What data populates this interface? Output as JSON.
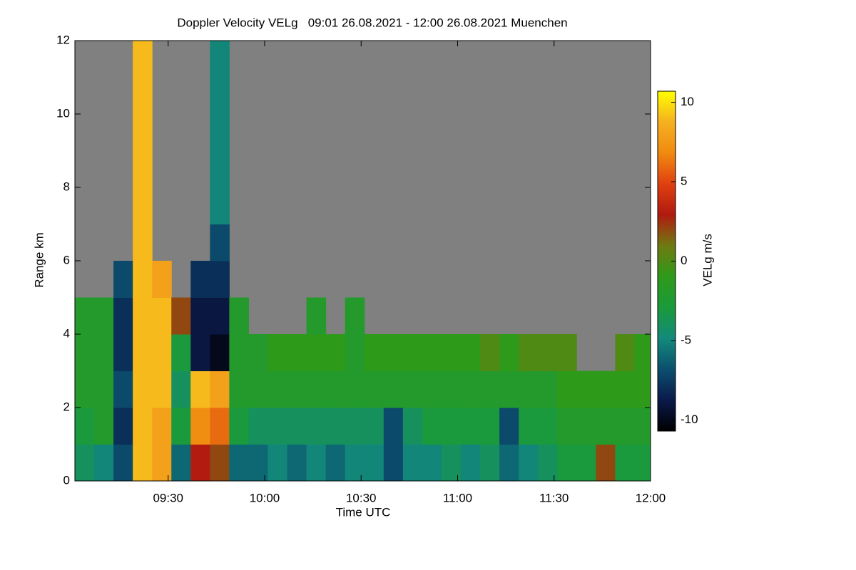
{
  "chart_data": {
    "type": "heatmap",
    "title": "Doppler Velocity VELg   09:01 26.08.2021 - 12:00 26.08.2021 Muenchen",
    "x_label": "Time UTC",
    "y_label": "Range km",
    "colorbar_label": "VELg m/s",
    "xlim": [
      541,
      720
    ],
    "xticks": [
      {
        "value": 570,
        "label": "09:30"
      },
      {
        "value": 600,
        "label": "10:00"
      },
      {
        "value": 630,
        "label": "10:30"
      },
      {
        "value": 660,
        "label": "11:00"
      },
      {
        "value": 690,
        "label": "11:30"
      },
      {
        "value": 720,
        "label": "12:00"
      }
    ],
    "ylim": [
      0,
      12
    ],
    "yticks": [
      0,
      2,
      4,
      6,
      8,
      10,
      12
    ],
    "clim": [
      -10.7,
      10.7
    ],
    "cticks": [
      -10,
      -5,
      0,
      5,
      10
    ],
    "colormap": [
      "#000000",
      "#0a1a4a",
      "#0b4f6e",
      "#138a7a",
      "#1a9a3a",
      "#2e9a1a",
      "#6f7a10",
      "#b01a10",
      "#e04010",
      "#f08a10",
      "#f5b020",
      "#ffff00"
    ],
    "missing_color": "#808080",
    "x": [
      544,
      550,
      556,
      562,
      568,
      574,
      580,
      586,
      592,
      598,
      604,
      610,
      616,
      622,
      628,
      634,
      640,
      646,
      652,
      658,
      664,
      670,
      676,
      682,
      688,
      694,
      700,
      706,
      712,
      718
    ],
    "y": [
      0.5,
      1.5,
      2.5,
      3.5,
      4.5,
      5.5,
      6.5,
      7.5,
      8.5,
      9.5,
      10.5,
      11.5
    ],
    "values": [
      [
        -4,
        -3,
        -2,
        -2,
        -2,
        null,
        null,
        null,
        null,
        null,
        null,
        null
      ],
      [
        -5,
        -2,
        -2,
        -2,
        -2,
        null,
        null,
        null,
        null,
        null,
        null,
        null
      ],
      [
        -7,
        -8,
        -7,
        -8,
        -8,
        -7,
        null,
        null,
        null,
        null,
        null,
        null
      ],
      [
        9,
        9,
        9,
        9,
        9,
        9,
        9,
        9,
        9,
        9,
        9,
        9
      ],
      [
        8,
        8,
        9,
        9,
        9,
        8,
        null,
        null,
        null,
        null,
        null,
        null
      ],
      [
        -6,
        -3,
        -4,
        -3,
        2,
        null,
        null,
        null,
        null,
        null,
        null,
        null
      ],
      [
        3,
        7,
        9,
        -9,
        -9,
        -8,
        null,
        null,
        null,
        null,
        null,
        null
      ],
      [
        2,
        6,
        8,
        -10,
        -9,
        -8,
        -7,
        -5,
        -5,
        -5,
        -5,
        -5
      ],
      [
        -6,
        -3,
        -2,
        -2,
        -2,
        null,
        null,
        null,
        null,
        null,
        null,
        null
      ],
      [
        -6,
        -4,
        -2,
        -2,
        null,
        null,
        null,
        null,
        null,
        null,
        null,
        null
      ],
      [
        -5,
        -4,
        -2,
        -1,
        null,
        null,
        null,
        null,
        null,
        null,
        null,
        null
      ],
      [
        -6,
        -4,
        -2,
        -1,
        null,
        null,
        null,
        null,
        null,
        null,
        null,
        null
      ],
      [
        -5,
        -4,
        -2,
        -1,
        -2,
        null,
        null,
        null,
        null,
        null,
        null,
        null
      ],
      [
        -6,
        -4,
        -2,
        -1,
        null,
        null,
        null,
        null,
        null,
        null,
        null,
        null
      ],
      [
        -5,
        -4,
        -2,
        -2,
        -2,
        null,
        null,
        null,
        null,
        null,
        null,
        null
      ],
      [
        -5,
        -4,
        -2,
        -1,
        null,
        null,
        null,
        null,
        null,
        null,
        null,
        null
      ],
      [
        -7,
        -7,
        -2,
        -1,
        null,
        null,
        null,
        null,
        null,
        null,
        null,
        null
      ],
      [
        -5,
        -4,
        -2,
        -1,
        null,
        null,
        null,
        null,
        null,
        null,
        null,
        null
      ],
      [
        -5,
        -3,
        -2,
        -1,
        null,
        null,
        null,
        null,
        null,
        null,
        null,
        null
      ],
      [
        -4,
        -3,
        -2,
        -1,
        null,
        null,
        null,
        null,
        null,
        null,
        null,
        null
      ],
      [
        -5,
        -3,
        -2,
        -1,
        null,
        null,
        null,
        null,
        null,
        null,
        null,
        null
      ],
      [
        -4,
        -3,
        -2,
        0,
        null,
        null,
        null,
        null,
        null,
        null,
        null,
        null
      ],
      [
        -6,
        -7,
        -2,
        -1,
        null,
        null,
        null,
        null,
        null,
        null,
        null,
        null
      ],
      [
        -5,
        -3,
        -2,
        0,
        null,
        null,
        null,
        null,
        null,
        null,
        null,
        null
      ],
      [
        -4,
        -3,
        -2,
        0,
        null,
        null,
        null,
        null,
        null,
        null,
        null,
        null
      ],
      [
        -3,
        -2,
        -1,
        0,
        null,
        null,
        null,
        null,
        null,
        null,
        null,
        null
      ],
      [
        -3,
        -2,
        -1,
        null,
        null,
        null,
        null,
        null,
        null,
        null,
        null,
        null
      ],
      [
        2,
        -2,
        -1,
        null,
        null,
        null,
        null,
        null,
        null,
        null,
        null,
        null
      ],
      [
        -3,
        -2,
        -1,
        0,
        null,
        null,
        null,
        null,
        null,
        null,
        null,
        null
      ],
      [
        -3,
        -2,
        -1,
        -1,
        null,
        null,
        null,
        null,
        null,
        null,
        null,
        null
      ]
    ]
  }
}
